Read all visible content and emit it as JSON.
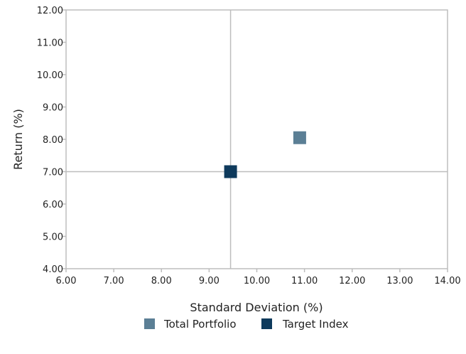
{
  "chart_data": {
    "type": "scatter",
    "xlabel": "Standard Deviation (%)",
    "ylabel": "Return (%)",
    "xlim": [
      6,
      14
    ],
    "ylim": [
      4,
      12
    ],
    "xticks": [
      "6.00",
      "7.00",
      "8.00",
      "9.00",
      "10.00",
      "11.00",
      "12.00",
      "13.00",
      "14.00"
    ],
    "yticks": [
      "4.00",
      "5.00",
      "6.00",
      "7.00",
      "8.00",
      "9.00",
      "10.00",
      "11.00",
      "12.00"
    ],
    "crosshair": {
      "x": 9.45,
      "y": 7.0
    },
    "marker": "square",
    "grid": false,
    "legend_position": "bottom",
    "series": [
      {
        "name": "Total Portfolio",
        "color": "#5b7f95",
        "points": [
          {
            "x": 10.9,
            "y": 8.05
          }
        ]
      },
      {
        "name": "Target Index",
        "color": "#0e3a5c",
        "points": [
          {
            "x": 9.45,
            "y": 7.0
          }
        ]
      }
    ]
  }
}
